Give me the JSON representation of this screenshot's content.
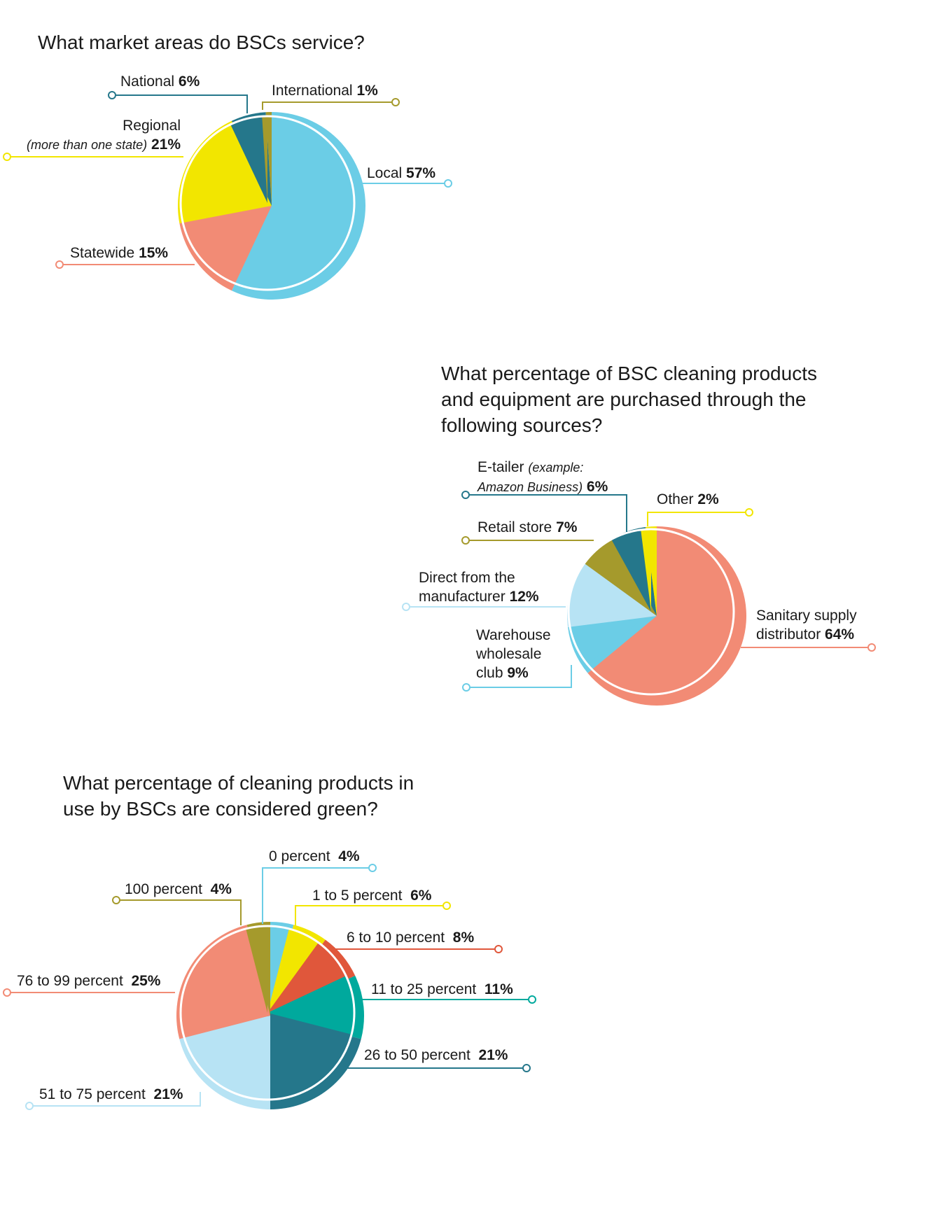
{
  "colors": {
    "local": "#6BCDE6",
    "national": "#25778B",
    "international": "#A59A2C",
    "regional": "#F2E600",
    "statewide": "#F28B75",
    "light_blue": "#B7E3F4",
    "teal": "#00A99D",
    "red_orange": "#E0573B"
  },
  "chart_data": [
    {
      "type": "pie",
      "title": "What market areas do BSCs service?",
      "slices": [
        {
          "name": "Local",
          "value": 57,
          "value_label": "57%",
          "color": "#6BCDE6"
        },
        {
          "name": "Statewide",
          "value": 15,
          "value_label": "15%",
          "color": "#F28B75"
        },
        {
          "name": "Regional",
          "note": "(more than one state)",
          "value": 21,
          "value_label": "21%",
          "color": "#F2E600"
        },
        {
          "name": "National",
          "value": 6,
          "value_label": "6%",
          "color": "#25778B"
        },
        {
          "name": "International",
          "value": 1,
          "value_label": "1%",
          "color": "#A59A2C"
        }
      ]
    },
    {
      "type": "pie",
      "title": "What percentage of BSC cleaning products and equipment are purchased through the following sources?",
      "slices": [
        {
          "name": "Sanitary supply distributor",
          "value": 64,
          "value_label": "64%",
          "color": "#F28B75"
        },
        {
          "name": "Warehouse wholesale club",
          "value": 9,
          "value_label": "9%",
          "color": "#6BCDE6"
        },
        {
          "name": "Direct from the manufacturer",
          "value": 12,
          "value_label": "12%",
          "color": "#B7E3F4"
        },
        {
          "name": "Retail store",
          "value": 7,
          "value_label": "7%",
          "color": "#A59A2C"
        },
        {
          "name": "E-tailer",
          "note": "(example: Amazon Business)",
          "value": 6,
          "value_label": "6%",
          "color": "#25778B"
        },
        {
          "name": "Other",
          "value": 2,
          "value_label": "2%",
          "color": "#F2E600"
        }
      ]
    },
    {
      "type": "pie",
      "title": "What percentage of cleaning products in use by BSCs are considered green?",
      "slices": [
        {
          "name": "0 percent",
          "value": 4,
          "value_label": "4%",
          "color": "#6BCDE6"
        },
        {
          "name": "1 to 5 percent",
          "value": 6,
          "value_label": "6%",
          "color": "#F2E600"
        },
        {
          "name": "6 to 10 percent",
          "value": 8,
          "value_label": "8%",
          "color": "#E0573B"
        },
        {
          "name": "11 to 25 percent",
          "value": 11,
          "value_label": "11%",
          "color": "#00A99D"
        },
        {
          "name": "26 to 50 percent",
          "value": 21,
          "value_label": "21%",
          "color": "#25778B"
        },
        {
          "name": "51 to 75 percent",
          "value": 21,
          "value_label": "21%",
          "color": "#B7E3F4"
        },
        {
          "name": "76 to 99 percent",
          "value": 25,
          "value_label": "25%",
          "color": "#F28B75"
        },
        {
          "name": "100 percent",
          "value": 4,
          "value_label": "4%",
          "color": "#A59A2C"
        }
      ]
    }
  ]
}
